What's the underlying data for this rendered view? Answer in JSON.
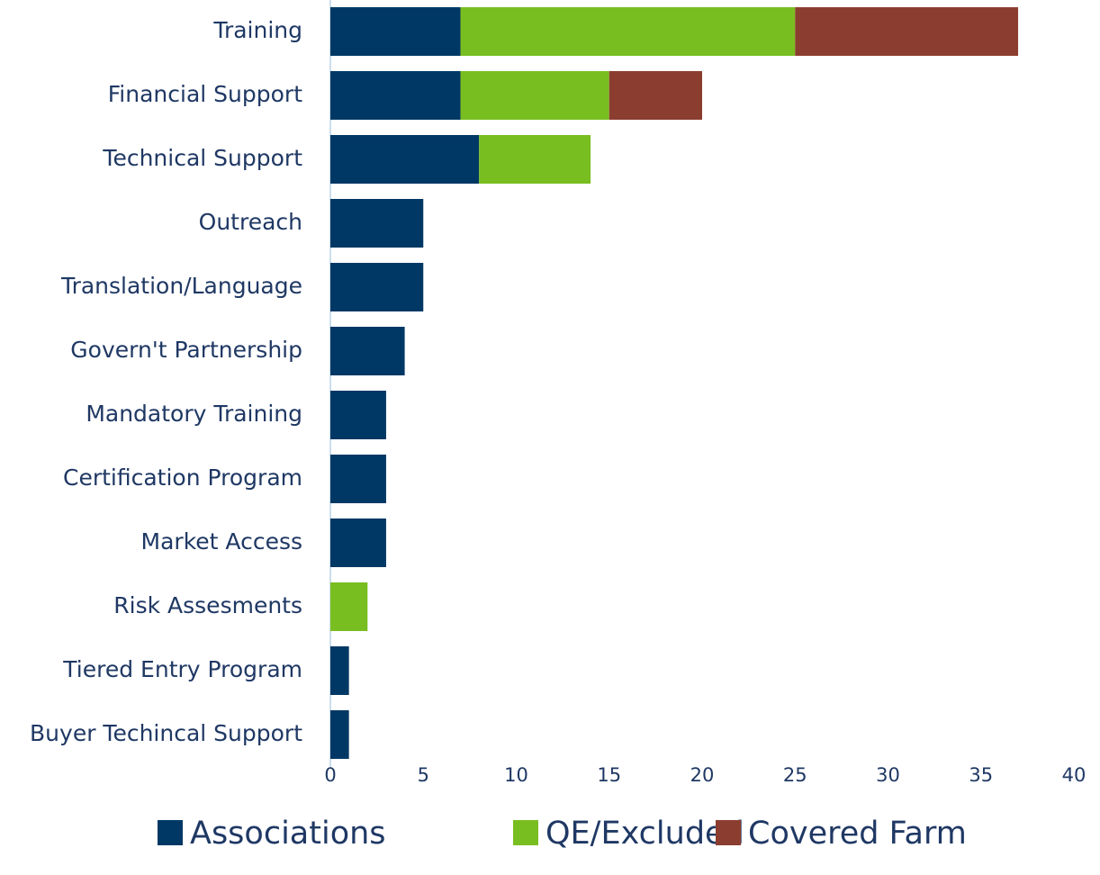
{
  "chart_data": {
    "type": "stacked-bar-horizontal",
    "categories": [
      "Training",
      "Financial Support",
      "Technical Support",
      "Outreach",
      "Translation/Language",
      "Govern't Partnership",
      "Mandatory Training",
      "Certification Program",
      "Market Access",
      "Risk Assesments",
      "Tiered Entry Program",
      "Buyer Techincal Support"
    ],
    "series": [
      {
        "name": "Associations",
        "color": "#003865",
        "values": [
          7,
          7,
          8,
          5,
          5,
          4,
          3,
          3,
          3,
          0,
          1,
          1
        ]
      },
      {
        "name": "QE/Excluded",
        "color": "#78be20",
        "values": [
          18,
          8,
          6,
          0,
          0,
          0,
          0,
          0,
          0,
          2,
          0,
          0
        ]
      },
      {
        "name": "Covered Farm",
        "color": "#8b3e2f",
        "values": [
          12,
          5,
          0,
          0,
          0,
          0,
          0,
          0,
          0,
          0,
          0,
          0
        ]
      }
    ],
    "xlim": [
      0,
      40
    ],
    "xticks": [
      0,
      5,
      10,
      15,
      20,
      25,
      30,
      35,
      40
    ],
    "legend": "bottom"
  }
}
